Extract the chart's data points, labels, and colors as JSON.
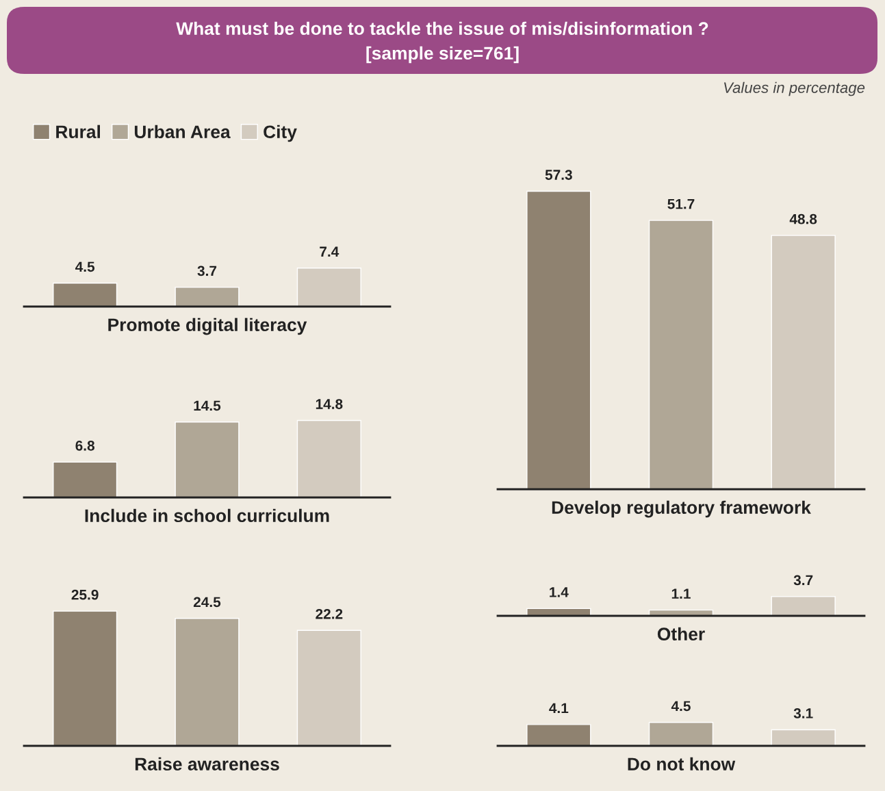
{
  "chart_data": [
    {
      "type": "bar",
      "title": "What must be done to tackle the issue of mis/disinformation ?\n[sample size=761]",
      "annotations": [
        "Values in percentage"
      ],
      "legend": "top left",
      "data_labels": true,
      "stacked": true,
      "grid": false,
      "xlabel": "Promote digital literacy",
      "categories": [
        null,
        null,
        null
      ],
      "series": [
        {
          "name": "Rural",
          "color": "#8f8270",
          "values": [
            4.5,
            null,
            null
          ]
        },
        {
          "name": "Urban Area",
          "color": "#b0a796",
          "values": [
            null,
            3.7,
            null
          ]
        },
        {
          "name": "City",
          "color": "#d3cbbf",
          "values": [
            null,
            null,
            7.4
          ]
        }
      ]
    },
    {
      "type": "bar",
      "data_labels": true,
      "stacked": true,
      "grid": false,
      "xlabel": "Develop regulatory framework",
      "categories": [
        null,
        null,
        null
      ],
      "series": [
        {
          "color": "#8f8270",
          "values": [
            57.3,
            null,
            null
          ]
        },
        {
          "color": "#b0a796",
          "values": [
            null,
            51.7,
            null
          ]
        },
        {
          "color": "#d3cbbf",
          "values": [
            null,
            null,
            48.8
          ]
        }
      ]
    },
    {
      "type": "bar",
      "data_labels": true,
      "stacked": true,
      "grid": false,
      "xlabel": "Include in school curriculum",
      "categories": [
        null,
        null,
        null
      ],
      "series": [
        {
          "color": "#8f8270",
          "values": [
            6.8,
            null,
            null
          ]
        },
        {
          "color": "#b0a796",
          "values": [
            null,
            14.5,
            null
          ]
        },
        {
          "color": "#d3cbbf",
          "values": [
            null,
            null,
            14.8
          ]
        }
      ]
    },
    {
      "type": "bar",
      "data_labels": true,
      "stacked": true,
      "grid": false,
      "xlabel": "Other",
      "categories": [
        null,
        null,
        null
      ],
      "series": [
        {
          "color": "#8f8270",
          "values": [
            1.4,
            null,
            null
          ]
        },
        {
          "color": "#b0a796",
          "values": [
            null,
            1.1,
            null
          ]
        },
        {
          "color": "#d3cbbf",
          "values": [
            null,
            null,
            3.7
          ]
        }
      ]
    },
    {
      "type": "bar",
      "data_labels": true,
      "stacked": true,
      "grid": false,
      "xlabel": "Raise awareness",
      "categories": [
        null,
        null,
        null
      ],
      "series": [
        {
          "color": "#8f8270",
          "values": [
            25.9,
            null,
            null
          ]
        },
        {
          "color": "#b0a796",
          "values": [
            null,
            24.5,
            null
          ]
        },
        {
          "color": "#d3cbbf",
          "values": [
            null,
            null,
            22.2
          ]
        }
      ]
    },
    {
      "type": "bar",
      "data_labels": true,
      "stacked": true,
      "grid": false,
      "xlabel": "Do not know",
      "categories": [
        null,
        null,
        null
      ],
      "series": [
        {
          "color": "#8f8270",
          "values": [
            4.1,
            null,
            null
          ]
        },
        {
          "color": "#b0a796",
          "values": [
            null,
            4.5,
            null
          ]
        },
        {
          "color": "#d3cbbf",
          "values": [
            null,
            null,
            3.1
          ]
        }
      ]
    }
  ]
}
